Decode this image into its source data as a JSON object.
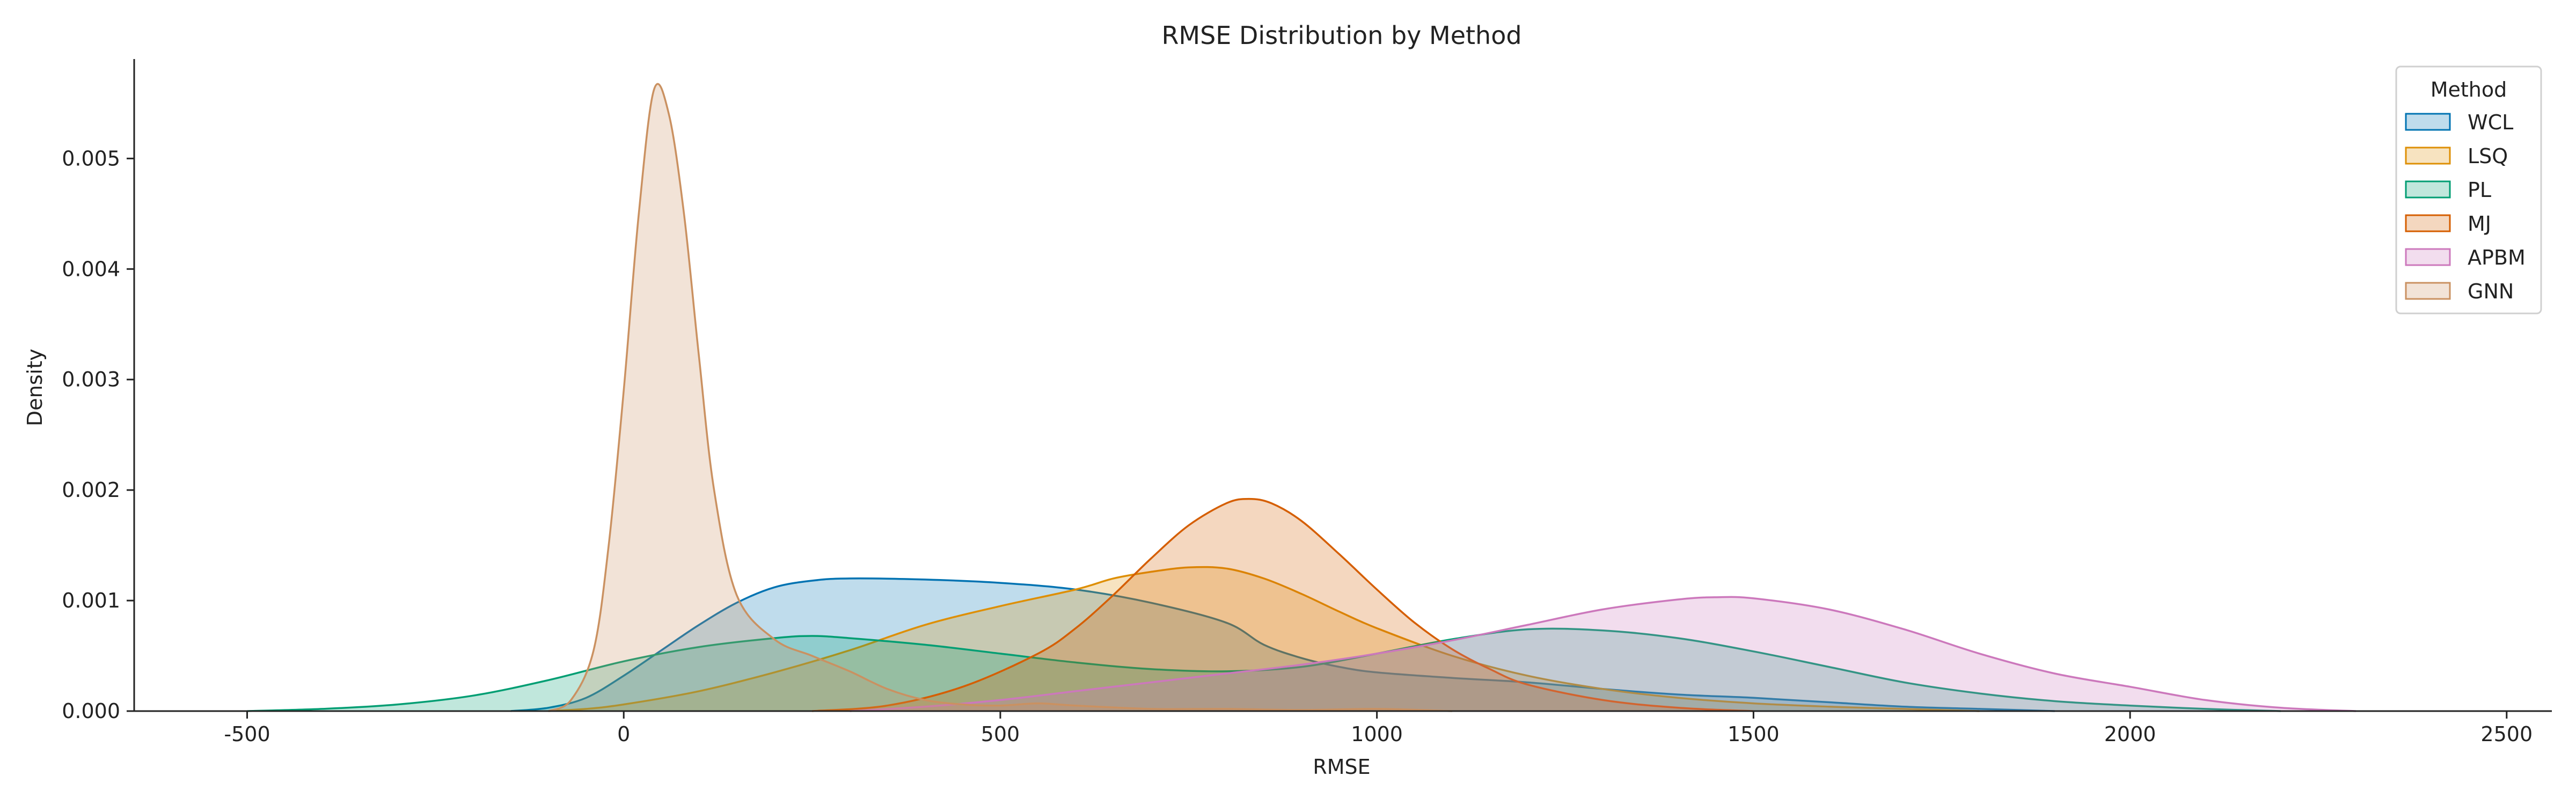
{
  "chart_data": {
    "type": "area",
    "subtype": "kde",
    "title": "RMSE Distribution by Method",
    "xlabel": "RMSE",
    "ylabel": "Density",
    "xlim": [
      -650,
      2560
    ],
    "ylim": [
      0,
      0.0059
    ],
    "xticks": [
      -500,
      0,
      500,
      1000,
      1500,
      2000,
      2500
    ],
    "yticks": [
      0.0,
      0.001,
      0.002,
      0.003,
      0.004,
      0.005
    ],
    "grid": false,
    "legend": {
      "title": "Method",
      "position": "top-right"
    },
    "series": [
      {
        "name": "WCL",
        "color": "#0173b2",
        "points": [
          [
            -150,
            0
          ],
          [
            -100,
            3e-05
          ],
          [
            -50,
            0.00012
          ],
          [
            0,
            0.00032
          ],
          [
            50,
            0.00055
          ],
          [
            100,
            0.00078
          ],
          [
            150,
            0.00098
          ],
          [
            200,
            0.00112
          ],
          [
            250,
            0.00118
          ],
          [
            300,
            0.0012
          ],
          [
            400,
            0.00119
          ],
          [
            500,
            0.00116
          ],
          [
            600,
            0.0011
          ],
          [
            700,
            0.00098
          ],
          [
            800,
            0.0008
          ],
          [
            850,
            0.0006
          ],
          [
            900,
            0.00048
          ],
          [
            950,
            0.0004
          ],
          [
            1000,
            0.00035
          ],
          [
            1100,
            0.0003
          ],
          [
            1200,
            0.00026
          ],
          [
            1300,
            0.0002
          ],
          [
            1400,
            0.00015
          ],
          [
            1500,
            0.00012
          ],
          [
            1600,
            8e-05
          ],
          [
            1700,
            4e-05
          ],
          [
            1800,
            2e-05
          ],
          [
            1900,
            0
          ]
        ]
      },
      {
        "name": "LSQ",
        "color": "#de8f05",
        "points": [
          [
            -100,
            0
          ],
          [
            -50,
            2e-05
          ],
          [
            0,
            6e-05
          ],
          [
            100,
            0.00018
          ],
          [
            200,
            0.00035
          ],
          [
            300,
            0.00055
          ],
          [
            400,
            0.00078
          ],
          [
            500,
            0.00095
          ],
          [
            600,
            0.0011
          ],
          [
            650,
            0.0012
          ],
          [
            700,
            0.00126
          ],
          [
            750,
            0.0013
          ],
          [
            800,
            0.00129
          ],
          [
            850,
            0.0012
          ],
          [
            900,
            0.00106
          ],
          [
            950,
            0.0009
          ],
          [
            1000,
            0.00075
          ],
          [
            1100,
            0.0005
          ],
          [
            1200,
            0.00032
          ],
          [
            1300,
            0.0002
          ],
          [
            1400,
            0.00012
          ],
          [
            1500,
            7e-05
          ],
          [
            1600,
            4e-05
          ],
          [
            1700,
            2e-05
          ],
          [
            1800,
            0
          ]
        ]
      },
      {
        "name": "PL",
        "color": "#029e73",
        "points": [
          [
            -500,
            0
          ],
          [
            -400,
            2e-05
          ],
          [
            -300,
            6e-05
          ],
          [
            -200,
            0.00014
          ],
          [
            -100,
            0.00028
          ],
          [
            0,
            0.00045
          ],
          [
            100,
            0.00058
          ],
          [
            200,
            0.00066
          ],
          [
            250,
            0.00068
          ],
          [
            300,
            0.00066
          ],
          [
            400,
            0.0006
          ],
          [
            500,
            0.00052
          ],
          [
            600,
            0.00044
          ],
          [
            700,
            0.00038
          ],
          [
            800,
            0.00036
          ],
          [
            900,
            0.0004
          ],
          [
            1000,
            0.00052
          ],
          [
            1100,
            0.00065
          ],
          [
            1200,
            0.00074
          ],
          [
            1300,
            0.00073
          ],
          [
            1400,
            0.00066
          ],
          [
            1500,
            0.00054
          ],
          [
            1600,
            0.0004
          ],
          [
            1700,
            0.00026
          ],
          [
            1800,
            0.00016
          ],
          [
            1900,
            9e-05
          ],
          [
            2000,
            5e-05
          ],
          [
            2100,
            2e-05
          ],
          [
            2200,
            0
          ]
        ]
      },
      {
        "name": "MJ",
        "color": "#d55e00",
        "points": [
          [
            250,
            0
          ],
          [
            350,
            5e-05
          ],
          [
            450,
            0.00022
          ],
          [
            550,
            0.00052
          ],
          [
            600,
            0.00075
          ],
          [
            650,
            0.00105
          ],
          [
            700,
            0.00138
          ],
          [
            750,
            0.00168
          ],
          [
            800,
            0.00188
          ],
          [
            830,
            0.00192
          ],
          [
            860,
            0.00188
          ],
          [
            900,
            0.00172
          ],
          [
            950,
            0.00142
          ],
          [
            1000,
            0.0011
          ],
          [
            1050,
            0.0008
          ],
          [
            1100,
            0.00056
          ],
          [
            1150,
            0.00038
          ],
          [
            1200,
            0.00024
          ],
          [
            1300,
            0.0001
          ],
          [
            1400,
            3e-05
          ],
          [
            1500,
            0
          ]
        ]
      },
      {
        "name": "APBM",
        "color": "#cc78bc",
        "points": [
          [
            300,
            0
          ],
          [
            400,
            4e-05
          ],
          [
            500,
            0.0001
          ],
          [
            600,
            0.00018
          ],
          [
            700,
            0.00026
          ],
          [
            800,
            0.00034
          ],
          [
            900,
            0.00042
          ],
          [
            1000,
            0.00052
          ],
          [
            1100,
            0.00064
          ],
          [
            1200,
            0.00078
          ],
          [
            1300,
            0.00092
          ],
          [
            1400,
            0.00101
          ],
          [
            1450,
            0.00103
          ],
          [
            1500,
            0.00102
          ],
          [
            1600,
            0.00092
          ],
          [
            1700,
            0.00074
          ],
          [
            1800,
            0.00052
          ],
          [
            1900,
            0.00034
          ],
          [
            2000,
            0.00022
          ],
          [
            2100,
            0.0001
          ],
          [
            2200,
            3e-05
          ],
          [
            2300,
            0
          ]
        ]
      },
      {
        "name": "GNN",
        "color": "#ca9161",
        "points": [
          [
            -100,
            0
          ],
          [
            -70,
            0.0001
          ],
          [
            -40,
            0.00055
          ],
          [
            -20,
            0.0015
          ],
          [
            0,
            0.0029
          ],
          [
            20,
            0.0045
          ],
          [
            40,
            0.00562
          ],
          [
            60,
            0.0054
          ],
          [
            80,
            0.0045
          ],
          [
            100,
            0.0032
          ],
          [
            120,
            0.002
          ],
          [
            150,
            0.00105
          ],
          [
            200,
            0.00065
          ],
          [
            250,
            0.0005
          ],
          [
            300,
            0.00036
          ],
          [
            350,
            0.0002
          ],
          [
            400,
            0.0001
          ],
          [
            450,
            6e-05
          ],
          [
            500,
            5e-05
          ],
          [
            550,
            7e-05
          ],
          [
            600,
            5e-05
          ],
          [
            700,
            2e-05
          ],
          [
            800,
            2e-05
          ],
          [
            900,
            1e-05
          ],
          [
            1000,
            2e-05
          ],
          [
            1100,
            0
          ]
        ]
      }
    ]
  }
}
